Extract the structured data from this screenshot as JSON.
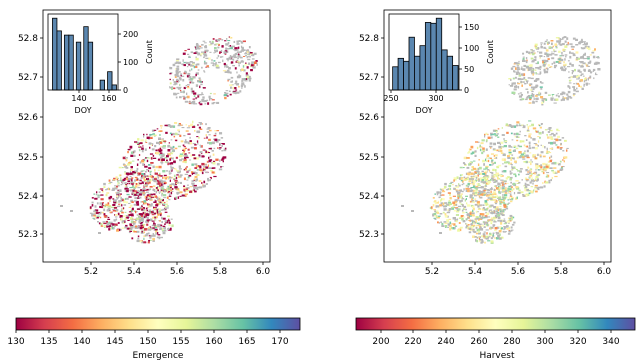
{
  "colormap_stops": [
    "#9e0142",
    "#d53e4f",
    "#f46d43",
    "#fdae61",
    "#fee08b",
    "#ffffbf",
    "#e6f598",
    "#abdda4",
    "#66c2a5",
    "#3288bd",
    "#5e4fa2"
  ],
  "colors": {
    "hist_fill": "#5b87b0",
    "no_data": "#b8b8b8",
    "frame": "#000000"
  },
  "panels": [
    {
      "id": "emergence",
      "map": {
        "xticks": [
          "5.2",
          "5.4",
          "5.6",
          "5.8",
          "6.0"
        ],
        "yticks": [
          "52.3",
          "52.4",
          "52.5",
          "52.6",
          "52.7",
          "52.8"
        ],
        "bias": 0.2,
        "spread": 0.6
      },
      "inset": {
        "xlabel": "DOY",
        "ylabel": "Count",
        "xticks": [
          "140",
          "160"
        ],
        "yticks": [
          "0",
          "100",
          "200"
        ]
      },
      "colorbar": {
        "label": "Emergence",
        "ticks": [
          "130",
          "135",
          "140",
          "145",
          "150",
          "155",
          "160",
          "165",
          "170"
        ]
      }
    },
    {
      "id": "harvest",
      "map": {
        "xticks": [
          "5.2",
          "5.4",
          "5.6",
          "5.8",
          "6.0"
        ],
        "yticks": [
          "52.3",
          "52.4",
          "52.5",
          "52.6",
          "52.7",
          "52.8"
        ],
        "bias": 0.52,
        "spread": 0.28
      },
      "inset": {
        "xlabel": "DOY",
        "ylabel": "Count",
        "xticks": [
          "250",
          "300"
        ],
        "yticks": [
          "0",
          "50",
          "100",
          "150"
        ]
      },
      "colorbar": {
        "label": "Harvest",
        "ticks": [
          "200",
          "220",
          "240",
          "260",
          "280",
          "300",
          "320",
          "340"
        ]
      }
    }
  ],
  "chart_data": [
    {
      "type": "bar",
      "xlabel": "DOY",
      "ylabel": "Count",
      "bins": [
        {
          "from": 128,
          "to": 131,
          "count": 255
        },
        {
          "from": 131,
          "to": 134,
          "count": 210
        },
        {
          "from": 136,
          "to": 139,
          "count": 195
        },
        {
          "from": 139,
          "to": 142,
          "count": 195
        },
        {
          "from": 144,
          "to": 147,
          "count": 170
        },
        {
          "from": 149,
          "to": 152,
          "count": 225
        },
        {
          "from": 152,
          "to": 155,
          "count": 170
        },
        {
          "from": 160,
          "to": 163,
          "count": 35
        },
        {
          "from": 165,
          "to": 168,
          "count": 65
        },
        {
          "from": 168,
          "to": 171,
          "count": 18
        }
      ],
      "xlim": [
        125,
        172
      ],
      "ylim": [
        0,
        270
      ]
    },
    {
      "type": "bar",
      "xlabel": "DOY",
      "ylabel": "Count",
      "bins": [
        {
          "from": 252,
          "to": 258,
          "count": 55
        },
        {
          "from": 258,
          "to": 264,
          "count": 75
        },
        {
          "from": 264,
          "to": 270,
          "count": 68
        },
        {
          "from": 270,
          "to": 276,
          "count": 125
        },
        {
          "from": 276,
          "to": 282,
          "count": 80
        },
        {
          "from": 282,
          "to": 288,
          "count": 105
        },
        {
          "from": 288,
          "to": 294,
          "count": 160
        },
        {
          "from": 294,
          "to": 300,
          "count": 158
        },
        {
          "from": 300,
          "to": 306,
          "count": 170
        },
        {
          "from": 306,
          "to": 312,
          "count": 95
        },
        {
          "from": 312,
          "to": 318,
          "count": 80
        },
        {
          "from": 318,
          "to": 324,
          "count": 58
        }
      ],
      "xlim": [
        248,
        325
      ],
      "ylim": [
        0,
        180
      ]
    }
  ]
}
